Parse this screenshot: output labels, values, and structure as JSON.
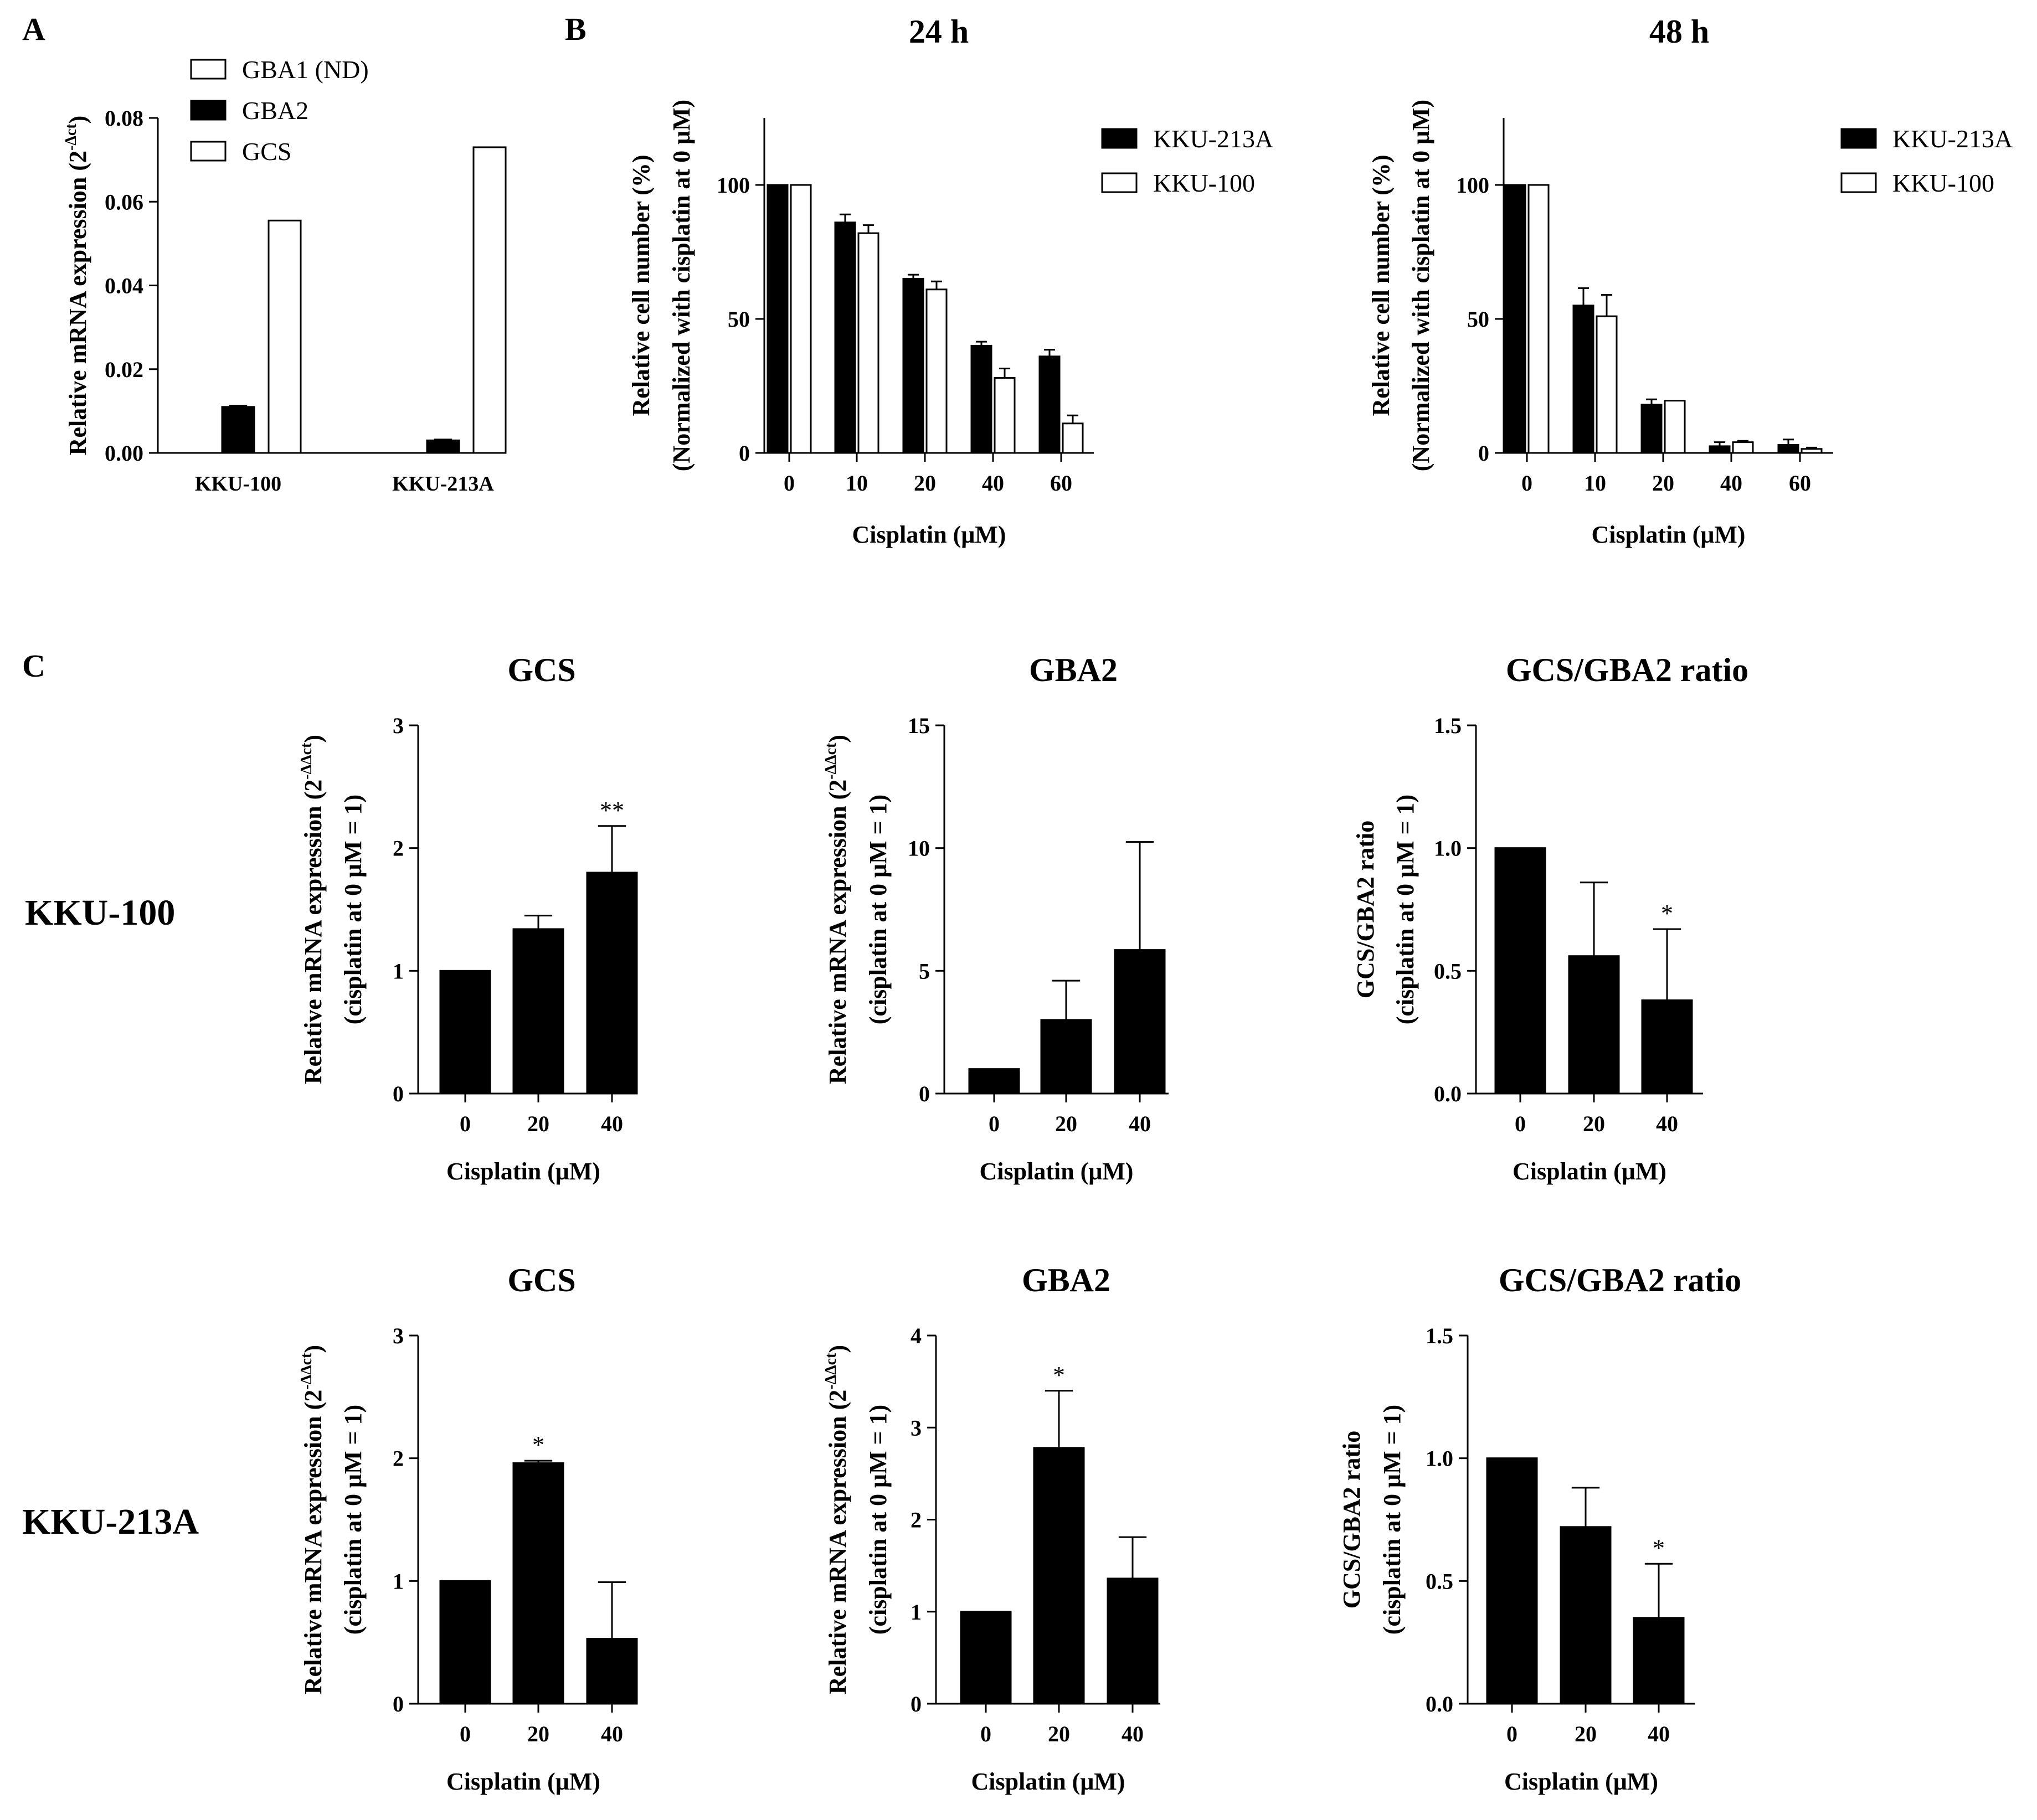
{
  "figure_panel_labels": [
    "A",
    "B",
    "C"
  ],
  "row_labels": [
    "KKU-100",
    "KKU-213A"
  ],
  "chart_data": [
    {
      "id": "A",
      "type": "bar",
      "panel_label": "A",
      "title": "",
      "ylabel": "Relative mRNA expression (2",
      "ylabel_sup": "-Δct",
      "ylabel_end": ")",
      "xlabel": "",
      "ylim": [
        0,
        0.08
      ],
      "yticks": [
        "0.00",
        "0.02",
        "0.04",
        "0.06",
        "0.08"
      ],
      "categories": [
        "KKU-100",
        "KKU-213A"
      ],
      "legend_position": "top",
      "series": [
        {
          "name": "GBA1 (ND)",
          "style": "hatched",
          "values": [
            0,
            0
          ],
          "errors": [
            0,
            0
          ]
        },
        {
          "name": "GBA2",
          "style": "black",
          "values": [
            0.011,
            0.003
          ],
          "errors": [
            0.0003,
            0.0002
          ]
        },
        {
          "name": "GCS",
          "style": "white",
          "values": [
            0.0555,
            0.073
          ],
          "errors": [
            0,
            0
          ]
        }
      ]
    },
    {
      "id": "B24",
      "type": "bar",
      "panel_label": "B",
      "title": "24 h",
      "ylabel": "Relative cell number (%)",
      "ylabel2": "(Normalized with cisplatin at 0 μM)",
      "xlabel": "Cisplatin (μM)",
      "ylim": [
        0,
        125
      ],
      "yticks": [
        "0",
        "50",
        "100"
      ],
      "categories": [
        "0",
        "10",
        "20",
        "40",
        "60"
      ],
      "legend_position": "right",
      "series": [
        {
          "name": "KKU-213A",
          "style": "black",
          "values": [
            100,
            86,
            65,
            40,
            36
          ],
          "errors": [
            0,
            3,
            1.5,
            1.5,
            2.5
          ]
        },
        {
          "name": "KKU-100",
          "style": "white",
          "values": [
            100,
            82,
            61,
            28,
            11
          ],
          "errors": [
            0,
            3,
            3,
            3.5,
            3
          ]
        }
      ]
    },
    {
      "id": "B48",
      "type": "bar",
      "panel_label": "",
      "title": "48 h",
      "ylabel": "Relative cell number (%)",
      "ylabel2": "(Normalized with cisplatin at 0 μM)",
      "xlabel": "Cisplatin (μM)",
      "ylim": [
        0,
        125
      ],
      "yticks": [
        "0",
        "50",
        "100"
      ],
      "categories": [
        "0",
        "10",
        "20",
        "40",
        "60"
      ],
      "legend_position": "right",
      "series": [
        {
          "name": "KKU-213A",
          "style": "black",
          "values": [
            100,
            55,
            18,
            2.5,
            3
          ],
          "errors": [
            0,
            6.5,
            2,
            1.5,
            2
          ]
        },
        {
          "name": "KKU-100",
          "style": "white",
          "values": [
            100,
            51,
            19.5,
            4,
            1.5
          ],
          "errors": [
            0,
            8,
            0,
            0.5,
            0.5
          ]
        }
      ]
    },
    {
      "id": "C1",
      "type": "bar",
      "panel_label": "C",
      "title": "GCS",
      "ylabel": "Relative mRNA expression (2",
      "ylabel_sup": "-ΔΔct",
      "ylabel_end": ")",
      "ylabel2": "(cisplatin at 0 μM = 1)",
      "xlabel": "Cisplatin (μM)",
      "ylim": [
        0,
        3
      ],
      "yticks": [
        "0",
        "1",
        "2",
        "3"
      ],
      "categories": [
        "0",
        "20",
        "40"
      ],
      "series": [
        {
          "name": "KKU-100",
          "style": "black",
          "values": [
            1,
            1.34,
            1.8
          ],
          "errors": [
            0,
            0.11,
            0.38
          ]
        }
      ],
      "annotations": [
        "",
        "",
        "**"
      ]
    },
    {
      "id": "C2",
      "type": "bar",
      "panel_label": "",
      "title": "GBA2",
      "ylabel": "Relative mRNA expression (2",
      "ylabel_sup": "-ΔΔct",
      "ylabel_end": ")",
      "ylabel2": "(cisplatin at 0 μM = 1)",
      "xlabel": "Cisplatin (μM)",
      "ylim": [
        0,
        15
      ],
      "yticks": [
        "0",
        "5",
        "10",
        "15"
      ],
      "categories": [
        "0",
        "20",
        "40"
      ],
      "series": [
        {
          "name": "KKU-100",
          "style": "black",
          "values": [
            1,
            3,
            5.85
          ],
          "errors": [
            0,
            1.6,
            4.4
          ]
        }
      ],
      "annotations": [
        "",
        "",
        ""
      ]
    },
    {
      "id": "C3",
      "type": "bar",
      "panel_label": "",
      "title": "GCS/GBA2 ratio",
      "ylabel": "GCS/GBA2 ratio",
      "ylabel2": "(cisplatin at 0 μM = 1)",
      "xlabel": "Cisplatin (μM)",
      "ylim": [
        0,
        1.5
      ],
      "yticks": [
        "0.0",
        "0.5",
        "1.0",
        "1.5"
      ],
      "categories": [
        "0",
        "20",
        "40"
      ],
      "series": [
        {
          "name": "KKU-100",
          "style": "black",
          "values": [
            1,
            0.56,
            0.38
          ],
          "errors": [
            0,
            0.3,
            0.29
          ]
        }
      ],
      "annotations": [
        "",
        "",
        "*"
      ]
    },
    {
      "id": "C4",
      "type": "bar",
      "panel_label": "",
      "title": "GCS",
      "ylabel": "Relative mRNA expression (2",
      "ylabel_sup": "-ΔΔct",
      "ylabel_end": ")",
      "ylabel2": "(cisplatin at 0 μM = 1)",
      "xlabel": "Cisplatin (μM)",
      "ylim": [
        0,
        3
      ],
      "yticks": [
        "0",
        "1",
        "2",
        "3"
      ],
      "categories": [
        "0",
        "20",
        "40"
      ],
      "series": [
        {
          "name": "KKU-213A",
          "style": "black",
          "values": [
            1,
            1.96,
            0.53
          ],
          "errors": [
            0,
            0.02,
            0.46
          ]
        }
      ],
      "annotations": [
        "",
        "*",
        ""
      ]
    },
    {
      "id": "C5",
      "type": "bar",
      "panel_label": "",
      "title": "GBA2",
      "ylabel": "Relative mRNA expression (2",
      "ylabel_sup": "-ΔΔct",
      "ylabel_end": ")",
      "ylabel2": "(cisplatin at 0 μM = 1)",
      "xlabel": "Cisplatin (μM)",
      "ylim": [
        0,
        4
      ],
      "yticks": [
        "0",
        "1",
        "2",
        "3",
        "4"
      ],
      "categories": [
        "0",
        "20",
        "40"
      ],
      "series": [
        {
          "name": "KKU-213A",
          "style": "black",
          "values": [
            1,
            2.78,
            1.36
          ],
          "errors": [
            0,
            0.62,
            0.45
          ]
        }
      ],
      "annotations": [
        "",
        "*",
        ""
      ]
    },
    {
      "id": "C6",
      "type": "bar",
      "panel_label": "",
      "title": "GCS/GBA2 ratio",
      "ylabel": "GCS/GBA2 ratio",
      "ylabel2": "(cisplatin at 0 μM = 1)",
      "xlabel": "Cisplatin (μM)",
      "ylim": [
        0,
        1.5
      ],
      "yticks": [
        "0.0",
        "0.5",
        "1.0",
        "1.5"
      ],
      "categories": [
        "0",
        "20",
        "40"
      ],
      "series": [
        {
          "name": "KKU-213A",
          "style": "black",
          "values": [
            1,
            0.72,
            0.35
          ],
          "errors": [
            0,
            0.16,
            0.22
          ]
        }
      ],
      "annotations": [
        "",
        "",
        "*"
      ]
    }
  ]
}
